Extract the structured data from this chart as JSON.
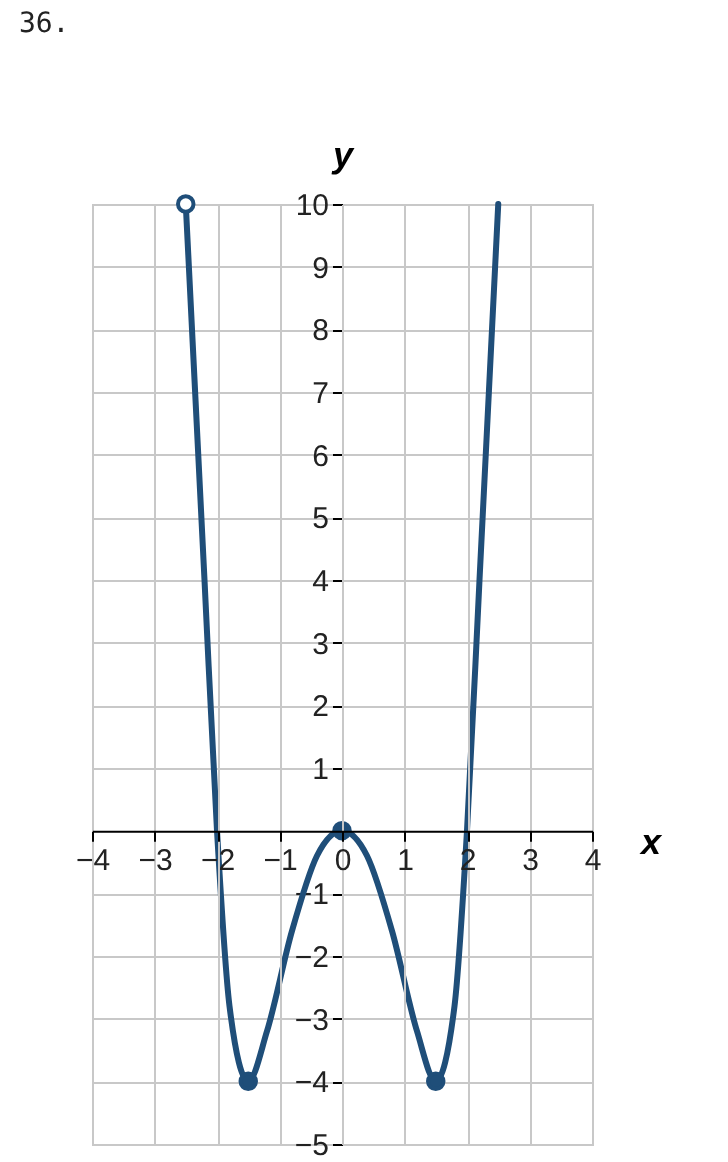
{
  "chart_data": {
    "type": "line",
    "title": "36.",
    "xlabel": "x",
    "ylabel": "y",
    "xlim": [
      -4,
      4
    ],
    "ylim": [
      -5,
      10
    ],
    "xticks": [
      -4,
      -3,
      -2,
      -1,
      0,
      1,
      2,
      3,
      4
    ],
    "yticks": [
      -5,
      -4,
      -3,
      -2,
      -1,
      1,
      2,
      3,
      4,
      5,
      6,
      7,
      8,
      9,
      10
    ],
    "grid": true,
    "series": [
      {
        "color": "#1f4e79",
        "marker": "none",
        "x": [
          -2.5,
          -2.2,
          -2,
          -1.8,
          -1.5,
          -1.2,
          -0.8,
          -0.4,
          0,
          0.4,
          0.8,
          1.2,
          1.5,
          1.8,
          2,
          2.2,
          2.5
        ],
        "values": [
          10,
          4,
          0,
          -2.8,
          -4,
          -3.2,
          -1.6,
          -0.4,
          0,
          -0.4,
          -1.6,
          -3.2,
          -4,
          -2.8,
          0,
          4,
          10
        ]
      },
      {
        "type": "scatter",
        "color": "#1f4e79",
        "marker": "circle",
        "x": [
          -1.5,
          0,
          1.5
        ],
        "values": [
          -4,
          0,
          -4
        ]
      },
      {
        "type": "scatter",
        "color": "#ffffff",
        "marker": "circle",
        "x": [
          -2.5
        ],
        "values": [
          10
        ]
      }
    ]
  }
}
